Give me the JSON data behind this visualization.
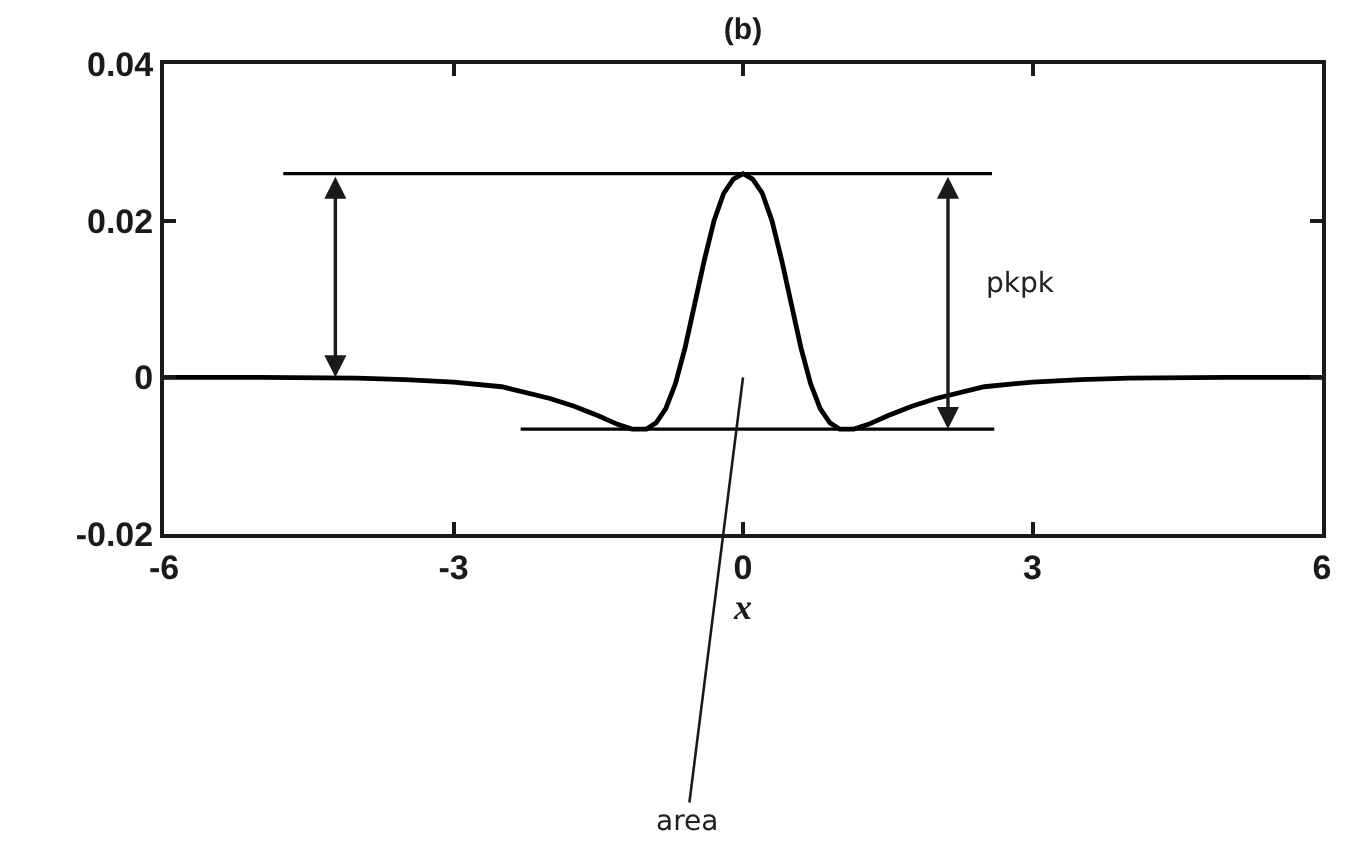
{
  "chart_data": {
    "type": "line",
    "title": "(b)",
    "xlabel": "x",
    "x": [
      -6,
      -5,
      -4,
      -3.5,
      -3,
      -2.5,
      -2,
      -1.75,
      -1.5,
      -1.3,
      -1.15,
      -1,
      -0.9,
      -0.8,
      -0.7,
      -0.6,
      -0.5,
      -0.4,
      -0.3,
      -0.2,
      -0.1,
      0,
      0.1,
      0.2,
      0.3,
      0.4,
      0.5,
      0.6,
      0.7,
      0.8,
      0.9,
      1,
      1.15,
      1.3,
      1.5,
      1.75,
      2,
      2.5,
      3,
      3.5,
      4,
      5,
      6
    ],
    "values": [
      0,
      0,
      -0.0001,
      -0.0003,
      -0.0006,
      -0.0012,
      -0.0027,
      -0.0037,
      -0.0049,
      -0.006,
      -0.0066,
      -0.0066,
      -0.0058,
      -0.004,
      -0.0008,
      0.0038,
      0.0094,
      0.015,
      0.02,
      0.0235,
      0.0253,
      0.026,
      0.0253,
      0.0235,
      0.02,
      0.015,
      0.0094,
      0.0038,
      -0.0008,
      -0.004,
      -0.0058,
      -0.0066,
      -0.0066,
      -0.006,
      -0.0049,
      -0.0037,
      -0.0027,
      -0.0012,
      -0.0006,
      -0.0003,
      -0.0001,
      0,
      0
    ],
    "color": "#000000",
    "line_style": "solid",
    "xlim": [
      -6,
      6
    ],
    "ylim": [
      -0.02,
      0.04
    ],
    "xticks": [
      -6,
      -3,
      0,
      3,
      6
    ],
    "yticks": [
      -0.02,
      0,
      0.02,
      0.04
    ],
    "ref_lines": [
      {
        "axis": "y",
        "value": 0.026
      },
      {
        "axis": "y",
        "value": -0.0066
      }
    ],
    "annotations": [
      "pkpk",
      "area"
    ],
    "grid": false
  }
}
